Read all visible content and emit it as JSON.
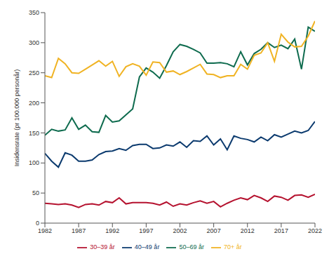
{
  "chart_data": {
    "type": "line",
    "y_label": "Insidensrate (pr 100.000 personår)",
    "x": [
      1982,
      1983,
      1984,
      1985,
      1986,
      1987,
      1988,
      1989,
      1990,
      1991,
      1992,
      1993,
      1994,
      1995,
      1996,
      1997,
      1998,
      1999,
      2000,
      2001,
      2002,
      2003,
      2004,
      2005,
      2006,
      2007,
      2008,
      2009,
      2010,
      2011,
      2012,
      2013,
      2014,
      2015,
      2016,
      2017,
      2018,
      2019,
      2020,
      2021,
      2022
    ],
    "series": [
      {
        "name": "30–39 år",
        "color": "#b5122f",
        "values": [
          33,
          32,
          31,
          32,
          30,
          26,
          31,
          32,
          30,
          36,
          34,
          42,
          32,
          34,
          34,
          34,
          33,
          30,
          35,
          28,
          32,
          30,
          34,
          37,
          33,
          36,
          27,
          33,
          38,
          42,
          39,
          46,
          42,
          36,
          45,
          43,
          38,
          46,
          47,
          43,
          48
        ]
      },
      {
        "name": "40–49 år",
        "color": "#0b3a6e",
        "values": [
          116,
          103,
          93,
          117,
          113,
          103,
          103,
          105,
          114,
          119,
          120,
          124,
          121,
          129,
          131,
          131,
          124,
          125,
          130,
          128,
          135,
          126,
          137,
          136,
          145,
          130,
          140,
          122,
          145,
          141,
          139,
          135,
          143,
          137,
          147,
          143,
          148,
          153,
          150,
          154,
          169
        ]
      },
      {
        "name": "50–69 år",
        "color": "#0e6b4e",
        "values": [
          146,
          156,
          153,
          155,
          175,
          156,
          163,
          152,
          151,
          179,
          168,
          170,
          180,
          190,
          243,
          258,
          251,
          241,
          262,
          285,
          297,
          294,
          289,
          283,
          266,
          266,
          267,
          265,
          260,
          285,
          263,
          282,
          289,
          300,
          292,
          296,
          290,
          306,
          256,
          326,
          319
        ]
      },
      {
        "name": "70+ år",
        "color": "#f0b323",
        "values": [
          245,
          242,
          274,
          265,
          250,
          249,
          256,
          263,
          270,
          261,
          269,
          244,
          260,
          265,
          261,
          246,
          268,
          267,
          251,
          253,
          247,
          252,
          258,
          264,
          248,
          247,
          242,
          245,
          245,
          264,
          256,
          279,
          283,
          300,
          269,
          314,
          301,
          293,
          294,
          311,
          336
        ]
      }
    ],
    "xlim": [
      1982,
      2022
    ],
    "xticks": [
      1982,
      1987,
      1992,
      1997,
      2002,
      2007,
      2012,
      2017,
      2022
    ],
    "ylim": [
      0,
      350
    ],
    "yticks": [
      0,
      50,
      100,
      150,
      200,
      250,
      300,
      350
    ],
    "grid": false,
    "legend": "bottom"
  }
}
